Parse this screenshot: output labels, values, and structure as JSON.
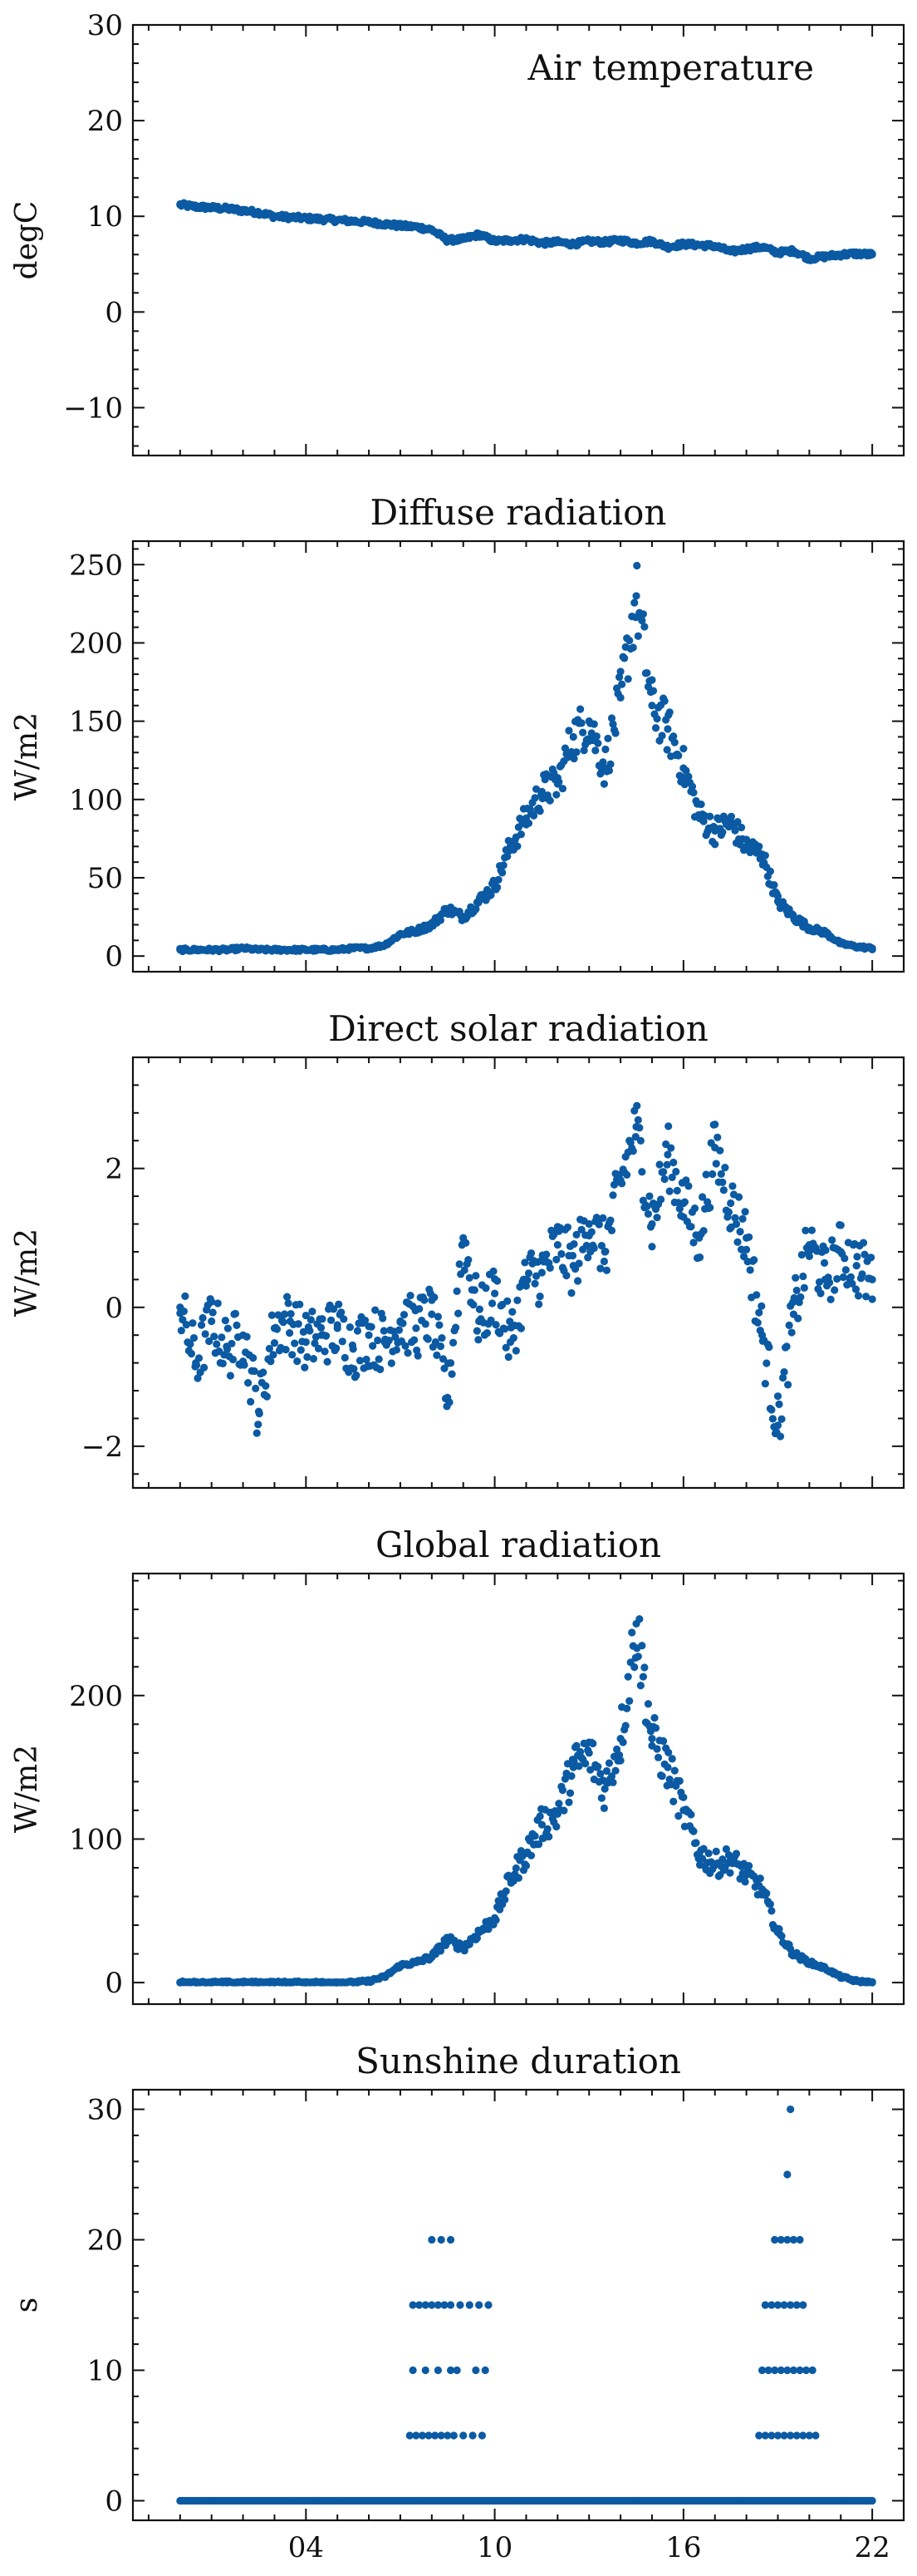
{
  "chart_data": [
    {
      "type": "scatter",
      "title": "Air temperature",
      "title_placement": "inside-top-right",
      "ylabel": "degC",
      "xlim": [
        -1.5,
        23
      ],
      "ylim": [
        -15,
        30
      ],
      "yticks": [
        -10,
        0,
        10,
        20,
        30
      ],
      "xticks": [
        4,
        10,
        16,
        22
      ],
      "xticklabels": [],
      "color": "#0b5aa3",
      "x": [
        0,
        0.5,
        1,
        1.5,
        2,
        2.5,
        3,
        3.5,
        4,
        4.5,
        5,
        5.5,
        6,
        6.5,
        7,
        7.5,
        8,
        8.5,
        9,
        9.5,
        10,
        10.5,
        11,
        11.5,
        12,
        12.5,
        13,
        13.5,
        14,
        14.5,
        15,
        15.5,
        16,
        16.5,
        17,
        17.5,
        18,
        18.5,
        19,
        19.5,
        20,
        20.5,
        21,
        21.5,
        22
      ],
      "y": [
        11.2,
        11.0,
        10.9,
        10.8,
        10.6,
        10.4,
        10.0,
        9.9,
        9.8,
        9.7,
        9.6,
        9.5,
        9.4,
        9.2,
        9.0,
        8.9,
        8.6,
        7.5,
        7.6,
        8.1,
        7.4,
        7.5,
        7.6,
        7.2,
        7.3,
        7.1,
        7.4,
        7.3,
        7.5,
        7.2,
        7.4,
        6.8,
        7.1,
        7.0,
        6.9,
        6.3,
        6.6,
        6.8,
        6.2,
        6.4,
        5.6,
        5.8,
        6.0,
        6.1,
        6.0
      ]
    },
    {
      "type": "scatter",
      "title": "Diffuse radiation",
      "ylabel": "W/m2",
      "xlim": [
        -1.5,
        23
      ],
      "ylim": [
        -10,
        265
      ],
      "yticks": [
        0,
        50,
        100,
        150,
        200,
        250
      ],
      "xticks": [
        4,
        10,
        16,
        22
      ],
      "xticklabels": [],
      "color": "#0b5aa3",
      "x": [
        0,
        0.5,
        1,
        1.5,
        2,
        2.5,
        3,
        3.5,
        4,
        4.5,
        5,
        5.5,
        6,
        6.5,
        7,
        7.5,
        8,
        8.5,
        9,
        9.5,
        10,
        10.5,
        11,
        11.5,
        12,
        12.5,
        13,
        13.5,
        14,
        14.5,
        15,
        15.5,
        16,
        16.5,
        17,
        17.5,
        18,
        18.5,
        19,
        19.5,
        20,
        20.5,
        21,
        21.5,
        22
      ],
      "y": [
        4,
        4,
        4,
        4,
        5,
        4,
        4,
        4,
        4,
        4,
        4,
        5,
        5,
        7,
        14,
        16,
        20,
        30,
        25,
        35,
        45,
        70,
        88,
        105,
        110,
        140,
        150,
        120,
        165,
        230,
        160,
        145,
        120,
        90,
        80,
        85,
        70,
        65,
        35,
        25,
        18,
        15,
        8,
        6,
        5
      ]
    },
    {
      "type": "scatter",
      "title": "Direct solar radiation",
      "ylabel": "W/m2",
      "xlim": [
        -1.5,
        23
      ],
      "ylim": [
        -2.6,
        3.6
      ],
      "yticks": [
        -2,
        0,
        2
      ],
      "xticks": [
        4,
        10,
        16,
        22
      ],
      "xticklabels": [],
      "color": "#0b5aa3",
      "x": [
        0,
        0.5,
        1,
        1.5,
        2,
        2.5,
        3,
        3.5,
        4,
        4.5,
        5,
        5.5,
        6,
        6.5,
        7,
        7.5,
        8,
        8.5,
        9,
        9.5,
        10,
        10.5,
        11,
        11.5,
        12,
        12.5,
        13,
        13.5,
        14,
        14.5,
        15,
        15.5,
        16,
        16.5,
        17,
        17.5,
        18,
        18.5,
        19,
        19.5,
        20,
        20.5,
        21,
        21.5,
        22
      ],
      "y": [
        0.0,
        -0.8,
        -0.2,
        -0.6,
        -0.4,
        -1.5,
        -0.3,
        -0.2,
        -0.5,
        -0.4,
        -0.3,
        -0.6,
        -0.4,
        -0.5,
        -0.2,
        -0.3,
        -0.1,
        -1.3,
        1.0,
        -0.2,
        0.2,
        -0.5,
        0.4,
        0.5,
        0.9,
        0.6,
        1.2,
        0.8,
        1.8,
        2.6,
        1.2,
        2.2,
        1.5,
        1.0,
        2.3,
        1.5,
        1.0,
        -0.4,
        -1.7,
        -0.1,
        0.9,
        0.4,
        0.8,
        0.6,
        0.4
      ]
    },
    {
      "type": "scatter",
      "title": "Global radiation",
      "ylabel": "W/m2",
      "xlim": [
        -1.5,
        23
      ],
      "ylim": [
        -15,
        285
      ],
      "yticks": [
        0,
        100,
        200
      ],
      "xticks": [
        4,
        10,
        16,
        22
      ],
      "xticklabels": [],
      "color": "#0b5aa3",
      "x": [
        0,
        0.5,
        1,
        1.5,
        2,
        2.5,
        3,
        3.5,
        4,
        4.5,
        5,
        5.5,
        6,
        6.5,
        7,
        7.5,
        8,
        8.5,
        9,
        9.5,
        10,
        10.5,
        11,
        11.5,
        12,
        12.5,
        13,
        13.5,
        14,
        14.5,
        15,
        15.5,
        16,
        16.5,
        17,
        17.5,
        18,
        18.5,
        19,
        19.5,
        20,
        20.5,
        21,
        21.5,
        22
      ],
      "y": [
        0,
        0,
        0,
        0,
        0,
        0,
        0,
        0,
        0,
        0,
        0,
        0,
        1,
        4,
        12,
        14,
        18,
        30,
        24,
        35,
        45,
        72,
        90,
        110,
        118,
        150,
        160,
        135,
        170,
        250,
        170,
        150,
        120,
        90,
        82,
        86,
        75,
        65,
        35,
        20,
        14,
        10,
        4,
        1,
        0
      ]
    },
    {
      "type": "scatter",
      "title": "Sunshine duration",
      "ylabel": "s",
      "xlim": [
        -1.5,
        23
      ],
      "ylim": [
        -1.5,
        31.5
      ],
      "yticks": [
        0,
        10,
        20,
        30
      ],
      "xticks": [
        4,
        10,
        16,
        22
      ],
      "xticklabels": [
        "04",
        "10",
        "16",
        "22"
      ],
      "color": "#0b5aa3",
      "x": [
        7.3,
        7.5,
        7.7,
        7.9,
        8.1,
        8.3,
        8.5,
        8.7,
        9.0,
        9.3,
        9.6,
        7.4,
        7.8,
        8.2,
        8.6,
        8.8,
        9.4,
        9.7,
        7.6,
        8.0,
        8.4,
        8.9,
        9.5,
        7.4,
        7.8,
        8.2,
        8.6,
        9.2,
        9.8,
        8.0,
        8.3,
        8.6,
        18.4,
        18.6,
        18.8,
        19.0,
        19.2,
        19.4,
        19.6,
        19.8,
        20.0,
        20.2,
        18.5,
        18.7,
        18.9,
        19.1,
        19.3,
        19.5,
        19.7,
        19.9,
        20.1,
        18.6,
        18.8,
        19.0,
        19.2,
        19.4,
        19.6,
        19.8,
        18.9,
        19.1,
        19.3,
        19.5,
        19.7,
        19.3,
        19.4
      ],
      "y": [
        5,
        5,
        5,
        5,
        5,
        5,
        5,
        5,
        5,
        5,
        5,
        10,
        10,
        10,
        10,
        10,
        10,
        10,
        15,
        15,
        15,
        15,
        15,
        15,
        15,
        15,
        15,
        15,
        15,
        20,
        20,
        20,
        5,
        5,
        5,
        5,
        5,
        5,
        5,
        5,
        5,
        5,
        10,
        10,
        10,
        10,
        10,
        10,
        10,
        10,
        10,
        15,
        15,
        15,
        15,
        15,
        15,
        15,
        20,
        20,
        20,
        20,
        20,
        25,
        30
      ],
      "baseline": {
        "y": 0,
        "x_range": [
          0,
          22
        ]
      }
    }
  ]
}
